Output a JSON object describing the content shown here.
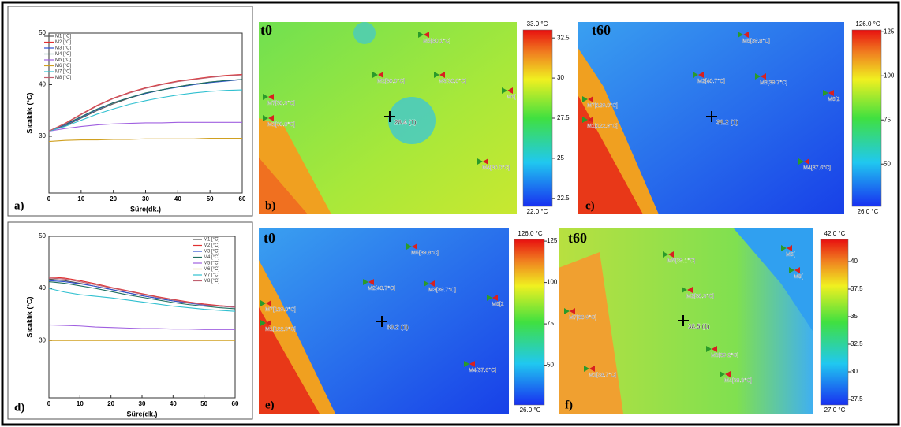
{
  "chart_data": [
    {
      "type": "line",
      "panel": "a)",
      "x_label": "Süre(dk.)",
      "y_label": "Sıcaklık (°C)",
      "x": [
        0,
        5,
        10,
        15,
        20,
        25,
        30,
        35,
        40,
        45,
        50,
        55,
        60
      ],
      "xlim": [
        0,
        60
      ],
      "xticks": [
        0,
        10,
        20,
        30,
        40,
        50,
        60
      ],
      "ylim": [
        19,
        50
      ],
      "yticks": [
        30,
        40,
        50
      ],
      "legend": "upper left",
      "series": [
        {
          "name": "M1 [°C]",
          "color": "#555555",
          "values": [
            31,
            32,
            33.5,
            35,
            36.3,
            37.4,
            38.3,
            39,
            39.6,
            40.1,
            40.5,
            40.8,
            41
          ]
        },
        {
          "name": "M2 [°C]",
          "color": "#e03030",
          "values": [
            31,
            32.5,
            34.3,
            36,
            37.4,
            38.5,
            39.4,
            40.1,
            40.7,
            41.1,
            41.5,
            41.8,
            42
          ]
        },
        {
          "name": "M3 [°C]",
          "color": "#3050d0",
          "values": [
            31,
            32.2,
            33.7,
            35.2,
            36.5,
            37.5,
            38.3,
            39,
            39.5,
            40,
            40.4,
            40.7,
            41
          ]
        },
        {
          "name": "M4 [°C]",
          "color": "#207060",
          "values": [
            31,
            32.3,
            33.8,
            35.3,
            36.5,
            37.5,
            38.4,
            39,
            39.6,
            40.1,
            40.5,
            40.8,
            41
          ]
        },
        {
          "name": "M5 [°C]",
          "color": "#a060e0",
          "values": [
            31,
            31.5,
            31.9,
            32.2,
            32.4,
            32.5,
            32.6,
            32.6,
            32.7,
            32.7,
            32.7,
            32.7,
            32.7
          ]
        },
        {
          "name": "M6 [°C]",
          "color": "#d0a020",
          "values": [
            29,
            29.2,
            29.3,
            29.3,
            29.4,
            29.4,
            29.5,
            29.5,
            29.5,
            29.5,
            29.6,
            29.6,
            29.6
          ]
        },
        {
          "name": "M7 [°C]",
          "color": "#30c0d0",
          "values": [
            31,
            31.9,
            33.1,
            34.3,
            35.3,
            36.2,
            36.9,
            37.5,
            38,
            38.4,
            38.7,
            38.9,
            39
          ]
        },
        {
          "name": "M8 [°C]",
          "color": "#c06070",
          "values": [
            31,
            32.4,
            34.2,
            35.9,
            37.3,
            38.4,
            39.3,
            40,
            40.6,
            41,
            41.4,
            41.7,
            41.9
          ]
        }
      ]
    },
    {
      "type": "line",
      "panel": "d)",
      "x_label": "Süre(dk.)",
      "y_label": "Sıcaklık (°C)",
      "x": [
        0,
        5,
        10,
        15,
        20,
        25,
        30,
        35,
        40,
        45,
        50,
        55,
        60
      ],
      "xlim": [
        0,
        60
      ],
      "xticks": [
        0,
        10,
        20,
        30,
        40,
        50,
        60
      ],
      "ylim": [
        19,
        50
      ],
      "yticks": [
        30,
        40,
        50
      ],
      "legend": "upper right",
      "series": [
        {
          "name": "M1 [°C]",
          "color": "#555555",
          "values": [
            41.8,
            41.5,
            41,
            40.4,
            39.8,
            39.2,
            38.6,
            38.1,
            37.6,
            37.2,
            36.9,
            36.6,
            36.4
          ]
        },
        {
          "name": "M2 [°C]",
          "color": "#e03030",
          "values": [
            42.2,
            42,
            41.5,
            40.9,
            40.2,
            39.6,
            39,
            38.4,
            37.9,
            37.4,
            37,
            36.7,
            36.5
          ]
        },
        {
          "name": "M3 [°C]",
          "color": "#3050d0",
          "values": [
            41.5,
            41.3,
            40.9,
            40.4,
            39.8,
            39.2,
            38.6,
            38.1,
            37.6,
            37.2,
            36.8,
            36.6,
            36.4
          ]
        },
        {
          "name": "M4 [°C]",
          "color": "#207060",
          "values": [
            41.3,
            41,
            40.5,
            40,
            39.4,
            38.8,
            38.3,
            37.8,
            37.3,
            36.9,
            36.6,
            36.3,
            36.1
          ]
        },
        {
          "name": "M5 [°C]",
          "color": "#a060e0",
          "values": [
            33,
            32.9,
            32.8,
            32.6,
            32.5,
            32.4,
            32.3,
            32.3,
            32.2,
            32.2,
            32.1,
            32.1,
            32.1
          ]
        },
        {
          "name": "M6 [°C]",
          "color": "#d0a020",
          "values": [
            30,
            30,
            30,
            30,
            30,
            30,
            30,
            30,
            30,
            30,
            30,
            30,
            30
          ]
        },
        {
          "name": "M7 [°C]",
          "color": "#30c0d0",
          "values": [
            40,
            39.3,
            38.8,
            38.5,
            38.2,
            37.8,
            37.4,
            37,
            36.6,
            36.3,
            36,
            35.8,
            35.6
          ]
        },
        {
          "name": "M8 [°C]",
          "color": "#c06070",
          "values": [
            42,
            41.8,
            41.3,
            40.7,
            40.1,
            39.5,
            38.9,
            38.3,
            37.8,
            37.3,
            36.9,
            36.6,
            36.4
          ]
        }
      ]
    }
  ],
  "thermal_images": [
    {
      "panel": "b)",
      "time": "t0",
      "cursor": "28.4 (1)",
      "colorbar": {
        "max_label": "33.0 °C",
        "min_label": "22.0 °C",
        "lim": [
          22,
          33
        ],
        "ticks": [
          22.5,
          25,
          27.5,
          30,
          32.5
        ]
      },
      "markers": [
        "M5[30.1°C]",
        "M2[30.0°C]",
        "M3[30.0°C]",
        "M6[",
        "M7[30.3°C]",
        "M1[30.8°C]",
        "M4[30.0°C]"
      ]
    },
    {
      "panel": "c)",
      "time": "t60",
      "cursor": "38.2 (1)",
      "colorbar": {
        "max_label": "126.0 °C",
        "min_label": "26.0 °C",
        "lim": [
          26,
          126
        ],
        "ticks": [
          50,
          75,
          100,
          125
        ]
      },
      "markers": [
        "M5[39.8°C]",
        "M2[40.7°C]",
        "M3[39.7°C]",
        "M6[2",
        "M7[129.0°C]",
        "M1[122.9°C]",
        "M4[37.6°C]"
      ]
    },
    {
      "panel": "e)",
      "time": "t0",
      "cursor": "38.2 (1)",
      "colorbar": {
        "max_label": "126.0 °C",
        "min_label": "26.0 °C",
        "lim": [
          26,
          126
        ],
        "ticks": [
          50,
          75,
          100,
          125
        ]
      },
      "markers": [
        "M5[39.8°C]",
        "M2[40.7°C]",
        "M3[39.7°C]",
        "M6[2",
        "M7[129.0°C]",
        "M1[122.9°C]",
        "M4[37.6°C]"
      ]
    },
    {
      "panel": "f)",
      "time": "t60",
      "cursor": "38.5 (1)",
      "colorbar": {
        "max_label": "42.0 °C",
        "min_label": "27.0 °C",
        "lim": [
          27,
          42
        ],
        "ticks": [
          27.5,
          30,
          32.5,
          35,
          37.5,
          40
        ]
      },
      "markers": [
        "M5[39.1°C]",
        "M2[38.3°C]",
        "M7[38.9°C]",
        "M3[39.2°C]",
        "M1[38.7°C]",
        "M4[38.3°C]",
        "M6[",
        "M8["
      ]
    }
  ]
}
